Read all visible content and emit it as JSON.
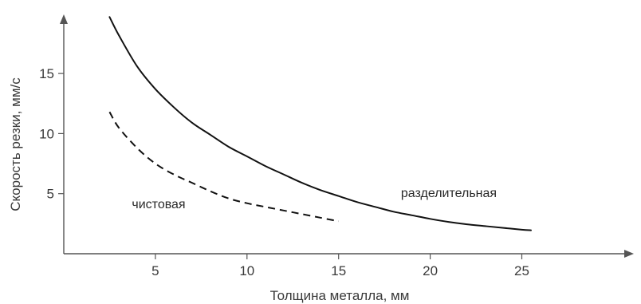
{
  "chart_data": {
    "type": "line",
    "title": "",
    "xlabel": "Толщина металла, мм",
    "ylabel": "Скорость резки, мм/с",
    "xlim": [
      0,
      31
    ],
    "ylim": [
      0,
      21
    ],
    "x_ticks": [
      5,
      10,
      15,
      20,
      25
    ],
    "y_ticks": [
      5,
      10,
      15
    ],
    "x_tick_labels": [
      "5",
      "10",
      "15",
      "20",
      "25"
    ],
    "y_tick_labels": [
      "5",
      "10",
      "15"
    ],
    "grid": false,
    "legend": "none",
    "series": [
      {
        "name": "разделительная",
        "line_style": "solid",
        "color": "#111111",
        "x": [
          2.5,
          3,
          4,
          5,
          6,
          7,
          8,
          9,
          10,
          11,
          12,
          13,
          14,
          15,
          16,
          17,
          18,
          19,
          20,
          21,
          22,
          23,
          24,
          25,
          25.5
        ],
        "y": [
          19.7,
          18.2,
          15.6,
          13.7,
          12.2,
          10.9,
          9.9,
          8.9,
          8.1,
          7.3,
          6.6,
          5.9,
          5.3,
          4.8,
          4.3,
          3.9,
          3.5,
          3.2,
          2.9,
          2.65,
          2.45,
          2.3,
          2.15,
          2.0,
          1.95
        ]
      },
      {
        "name": "чистовая",
        "line_style": "dashed",
        "color": "#111111",
        "x": [
          2.5,
          3,
          4,
          5,
          6,
          7,
          8,
          9,
          10,
          11,
          12,
          13,
          14,
          15
        ],
        "y": [
          11.8,
          10.5,
          8.8,
          7.5,
          6.6,
          5.9,
          5.2,
          4.6,
          4.2,
          3.9,
          3.6,
          3.3,
          3.0,
          2.7
        ]
      }
    ]
  }
}
